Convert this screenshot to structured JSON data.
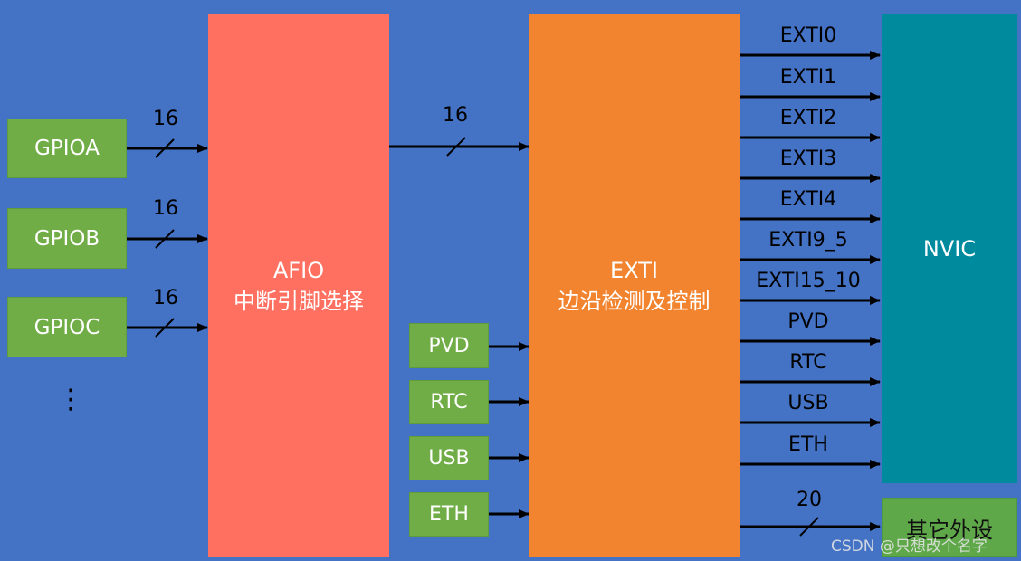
{
  "gpio_blocks": [
    {
      "label": "GPIOA",
      "bus_width": "16"
    },
    {
      "label": "GPIOB",
      "bus_width": "16"
    },
    {
      "label": "GPIOC",
      "bus_width": "16"
    }
  ],
  "gpio_ellipsis": "⋮",
  "afio": {
    "line1": "AFIO",
    "line2": "中断引脚选择"
  },
  "afio_to_exti_width": "16",
  "exti": {
    "line1": "EXTI",
    "line2": "边沿检测及控制"
  },
  "exti_inputs": [
    "PVD",
    "RTC",
    "USB",
    "ETH"
  ],
  "exti_outputs": [
    "EXTI0",
    "EXTI1",
    "EXTI2",
    "EXTI3",
    "EXTI4",
    "EXTI9_5",
    "EXTI15_10",
    "PVD",
    "RTC",
    "USB",
    "ETH"
  ],
  "nvic": {
    "label": "NVIC"
  },
  "other_peripherals": {
    "label": "其它外设",
    "bus_width": "20"
  },
  "watermark": "CSDN @只想改个名字",
  "colors": {
    "background": "#4472c4",
    "gpio": "#70ad47",
    "afio": "#ff7060",
    "exti": "#f28430",
    "nvic": "#008a9e",
    "arrow": "#000000"
  }
}
